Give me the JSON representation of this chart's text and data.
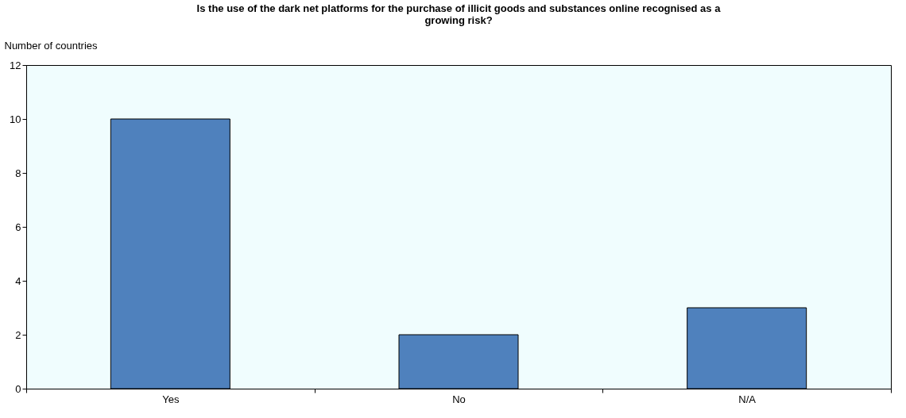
{
  "chart_data": {
    "type": "bar",
    "title": "Is the use of the dark net platforms for the purchase of illicit goods and substances online recognised as a growing risk?",
    "ylabel": "Number of countries",
    "categories": [
      "Yes",
      "No",
      "N/A"
    ],
    "values": [
      10,
      2,
      3
    ],
    "color": "#4f81bd",
    "ylim": [
      0,
      12
    ],
    "yticks": [
      0,
      2,
      4,
      6,
      8,
      10,
      12
    ],
    "grid": false
  }
}
